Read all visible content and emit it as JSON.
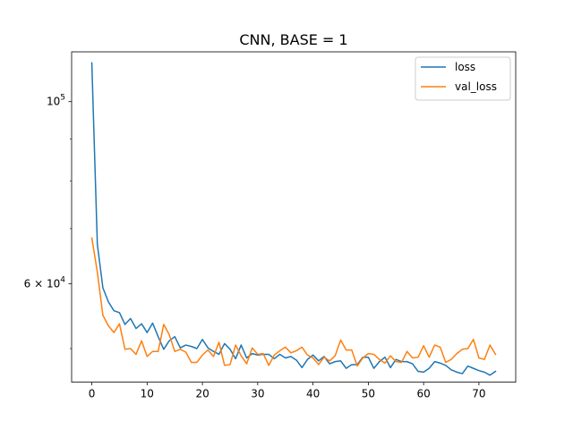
{
  "chart_data": {
    "type": "line",
    "title": "CNN, BASE = 1",
    "xlabel": "",
    "ylabel": "",
    "xlim": [
      -3.65,
      76.65
    ],
    "ylim": [
      45500,
      115000
    ],
    "yscale": "log",
    "xticks": [
      0,
      10,
      20,
      30,
      40,
      50,
      60,
      70
    ],
    "yticks": [
      {
        "value": 100000,
        "base": "10",
        "exp": "5"
      },
      {
        "value": 60000,
        "base": "6 × 10",
        "exp": "4"
      }
    ],
    "legend_position": "upper right",
    "series": [
      {
        "name": "loss",
        "color": "#1f77b4",
        "x": [
          0,
          1,
          2,
          3,
          4,
          5,
          6,
          7,
          8,
          9,
          10,
          11,
          12,
          13,
          14,
          15,
          16,
          17,
          18,
          19,
          20,
          21,
          22,
          23,
          24,
          25,
          26,
          27,
          28,
          29,
          30,
          31,
          32,
          33,
          34,
          35,
          36,
          37,
          38,
          39,
          40,
          41,
          42,
          43,
          44,
          45,
          46,
          47,
          48,
          49,
          50,
          51,
          52,
          53,
          54,
          55,
          56,
          57,
          58,
          59,
          60,
          61,
          62,
          63,
          64,
          65,
          66,
          67,
          68,
          69,
          70,
          71,
          72,
          73
        ],
        "values": [
          111500,
          67000,
          59300,
          57000,
          55600,
          55300,
          53500,
          54400,
          52900,
          53600,
          52300,
          53700,
          51700,
          49900,
          51100,
          51700,
          50100,
          50500,
          50300,
          50000,
          51300,
          50100,
          49600,
          49200,
          50700,
          49900,
          48600,
          50500,
          48700,
          49300,
          49100,
          49200,
          49200,
          48600,
          49200,
          48700,
          48900,
          48400,
          47400,
          48500,
          49100,
          48300,
          48900,
          47900,
          48200,
          48300,
          47300,
          47800,
          47800,
          48800,
          48800,
          47300,
          48200,
          48800,
          47400,
          48500,
          48200,
          48200,
          47900,
          46900,
          46800,
          47300,
          48200,
          48000,
          47700,
          47100,
          46800,
          46600,
          47600,
          47300,
          47000,
          46800,
          46400,
          46900
        ]
      },
      {
        "name": "val_loss",
        "color": "#ff7f0e",
        "x": [
          0,
          1,
          2,
          3,
          4,
          5,
          6,
          7,
          8,
          9,
          10,
          11,
          12,
          13,
          14,
          15,
          16,
          17,
          18,
          19,
          20,
          21,
          22,
          23,
          24,
          25,
          26,
          27,
          28,
          29,
          30,
          31,
          32,
          33,
          34,
          35,
          36,
          37,
          38,
          39,
          40,
          41,
          42,
          43,
          44,
          45,
          46,
          47,
          48,
          49,
          50,
          51,
          52,
          53,
          54,
          55,
          56,
          57,
          58,
          59,
          60,
          61,
          62,
          63,
          64,
          65,
          66,
          67,
          68,
          69,
          70,
          71,
          72,
          73
        ],
        "values": [
          68200,
          62000,
          54900,
          53300,
          52300,
          53600,
          49900,
          50000,
          49200,
          51100,
          48900,
          49600,
          49600,
          53500,
          52000,
          49600,
          49900,
          49500,
          48100,
          48100,
          49100,
          49800,
          48900,
          50900,
          47700,
          47800,
          50500,
          49000,
          47900,
          50100,
          49200,
          49300,
          47700,
          49100,
          49700,
          50200,
          49400,
          49700,
          50200,
          49100,
          48700,
          47800,
          48800,
          48300,
          49000,
          51200,
          49800,
          49800,
          47600,
          48700,
          49300,
          49200,
          48500,
          48000,
          49000,
          48200,
          48100,
          49600,
          48700,
          48800,
          50400,
          48800,
          50500,
          50200,
          48100,
          48500,
          49300,
          49900,
          50000,
          51300,
          48700,
          48500,
          50500,
          49200
        ]
      }
    ]
  }
}
